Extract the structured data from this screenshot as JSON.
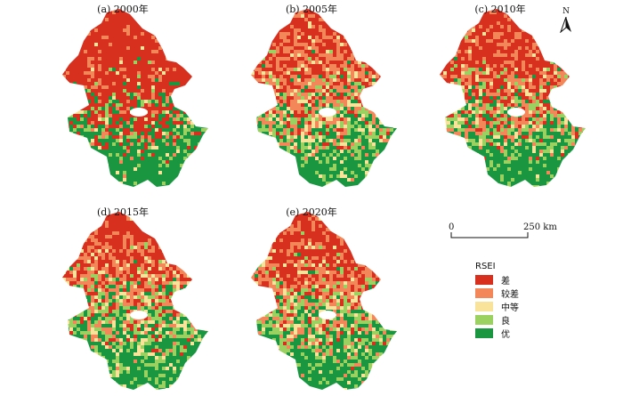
{
  "panels": [
    {
      "label": "(a) 2000年",
      "dist": [
        0.62,
        0.16,
        0.05,
        0.07,
        0.1
      ]
    },
    {
      "label": "(b) 2005年",
      "dist": [
        0.16,
        0.37,
        0.17,
        0.18,
        0.12
      ]
    },
    {
      "label": "(c) 2010年",
      "dist": [
        0.24,
        0.35,
        0.13,
        0.16,
        0.12
      ]
    },
    {
      "label": "(d) 2015年",
      "dist": [
        0.14,
        0.28,
        0.2,
        0.23,
        0.15
      ]
    },
    {
      "label": "(e) 2020年",
      "dist": [
        0.18,
        0.3,
        0.16,
        0.22,
        0.14
      ]
    }
  ],
  "north_arrow": {
    "label": "N"
  },
  "scale_bar": {
    "start_label": "0",
    "end_label": "250 km"
  },
  "legend": {
    "title": "RSEI",
    "items": [
      {
        "label": "差",
        "color": "#d7301f"
      },
      {
        "label": "较差",
        "color": "#f4875a"
      },
      {
        "label": "中等",
        "color": "#f9e39a"
      },
      {
        "label": "良",
        "color": "#9ad160"
      },
      {
        "label": "优",
        "color": "#1a9641"
      }
    ]
  }
}
